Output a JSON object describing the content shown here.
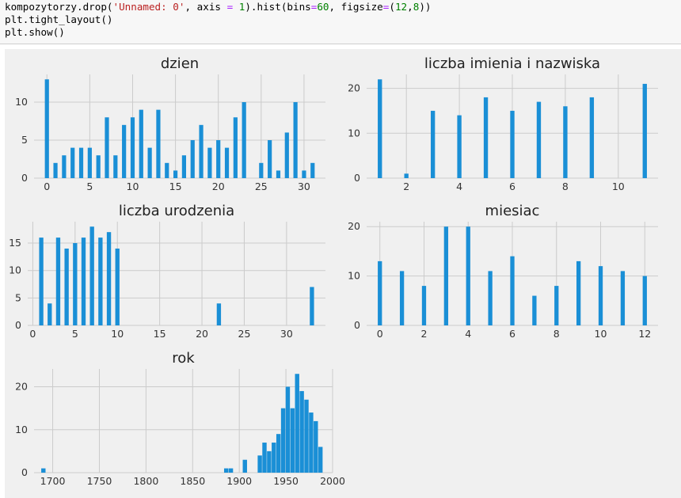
{
  "code": {
    "line1_prefix": "kompozytorzy.drop(",
    "line1_arg1": "'Unnamed: 0'",
    "line1_mid": ", axis ",
    "line1_eq": "=",
    "line1_sp": " ",
    "line1_one": "1",
    "line1_suffix1": ").hist(bins",
    "line1_eq2": "=",
    "line1_sixty": "60",
    "line1_suffix2": ", figsize",
    "line1_eq3": "=",
    "line1_suffix3": "(",
    "line1_twelve": "12",
    "line1_comma": ",",
    "line1_eight": "8",
    "line1_end": "))",
    "line2": "plt.tight_layout()",
    "line3": "plt.show()"
  },
  "colors": {
    "bar": "#1a8fd6",
    "background": "#f0f0f0",
    "grid": "#cbcbcb"
  },
  "chart_data": [
    {
      "type": "bar",
      "title": "dzien",
      "xlim": [
        -1.5,
        32.5
      ],
      "ylim": [
        0,
        13.65
      ],
      "xticks": [
        0,
        5,
        10,
        15,
        20,
        25,
        30
      ],
      "yticks": [
        0,
        5,
        10
      ],
      "bar_width": 0.48,
      "x": [
        0,
        1,
        2,
        3,
        4,
        5,
        6,
        7,
        8,
        9,
        10,
        11,
        12,
        13,
        14,
        15,
        16,
        17,
        18,
        19,
        20,
        21,
        22,
        23,
        25,
        26,
        27,
        28,
        29,
        30,
        31
      ],
      "values": [
        13,
        2,
        3,
        4,
        4,
        4,
        3,
        8,
        3,
        7,
        8,
        9,
        4,
        9,
        2,
        1,
        3,
        5,
        7,
        4,
        5,
        4,
        8,
        10,
        2,
        5,
        1,
        6,
        10,
        1,
        2
      ]
    },
    {
      "type": "bar",
      "title": "liczba imienia i nazwiska",
      "xlim": [
        0.5,
        11.5
      ],
      "ylim": [
        0,
        23.1
      ],
      "xticks": [
        2,
        4,
        6,
        8,
        10
      ],
      "yticks": [
        0,
        10,
        20
      ],
      "bar_width": 0.16,
      "x": [
        1,
        2,
        3,
        4,
        5,
        6,
        7,
        8,
        9,
        11
      ],
      "values": [
        22,
        1,
        15,
        14,
        18,
        15,
        17,
        16,
        18,
        21
      ]
    },
    {
      "type": "bar",
      "title": "liczba urodzenia",
      "xlim": [
        -0.6,
        34.6
      ],
      "ylim": [
        0,
        18.9
      ],
      "xticks": [
        0,
        5,
        10,
        15,
        20,
        25,
        30
      ],
      "yticks": [
        0,
        5,
        10,
        15
      ],
      "bar_width": 0.5,
      "x": [
        1,
        2,
        3,
        4,
        5,
        6,
        7,
        8,
        9,
        10,
        22,
        33
      ],
      "values": [
        16,
        4,
        16,
        14,
        15,
        16,
        18,
        16,
        17,
        14,
        4,
        7
      ]
    },
    {
      "type": "bar",
      "title": "miesiac",
      "xlim": [
        -0.6,
        12.6
      ],
      "ylim": [
        0,
        21
      ],
      "xticks": [
        0,
        2,
        4,
        6,
        8,
        10,
        12
      ],
      "yticks": [
        0,
        10,
        20
      ],
      "bar_width": 0.19,
      "x": [
        0,
        1,
        2,
        3,
        4,
        5,
        6,
        7,
        8,
        9,
        10,
        11,
        12
      ],
      "values": [
        13,
        11,
        8,
        20,
        20,
        11,
        14,
        6,
        8,
        13,
        12,
        11,
        10
      ]
    },
    {
      "type": "bar",
      "title": "rok",
      "xlim": [
        1680,
        2000
      ],
      "ylim": [
        0,
        24.15
      ],
      "xticks": [
        1700,
        1750,
        1800,
        1850,
        1900,
        1950,
        2000
      ],
      "yticks": [
        0,
        10,
        20
      ],
      "bar_width": 4.6,
      "x": [
        1690,
        1886,
        1891,
        1906,
        1922,
        1927,
        1932,
        1937,
        1942,
        1947,
        1952,
        1957,
        1962,
        1967,
        1972,
        1977,
        1982,
        1987
      ],
      "values": [
        1,
        1,
        1,
        3,
        4,
        7,
        5,
        7,
        9,
        15,
        20,
        15,
        23,
        19,
        17,
        14,
        12,
        6
      ]
    }
  ]
}
